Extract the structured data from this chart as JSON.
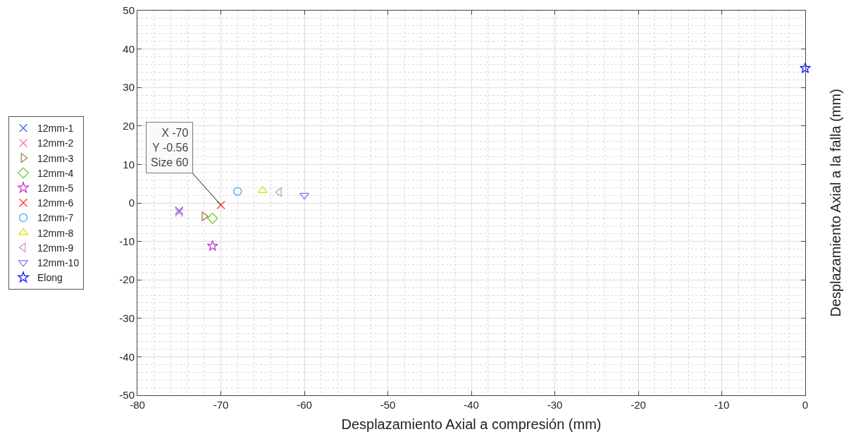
{
  "chart_data": {
    "type": "scatter",
    "xlabel": "Desplazamiento Axial a compresión (mm)",
    "ylabel": "Desplazamiento Axial a la falla (mm)",
    "xlim": [
      -80,
      0
    ],
    "xticks": [
      -80,
      -70,
      -60,
      -50,
      -40,
      -30,
      -20,
      -10,
      0
    ],
    "ylim": [
      -50,
      50
    ],
    "yticks": [
      -50,
      -40,
      -30,
      -20,
      -10,
      0,
      10,
      20,
      30,
      40,
      50
    ],
    "grid": true,
    "legend": "left",
    "series": [
      {
        "name": "12mm-1",
        "color": "#3b6cf0",
        "marker": "x",
        "x": [
          -75
        ],
        "values": [
          -2
        ]
      },
      {
        "name": "12mm-2",
        "color": "#ff66aa",
        "marker": "x",
        "x": [
          -75
        ],
        "values": [
          -2.5
        ]
      },
      {
        "name": "12mm-3",
        "color": "#a67c52",
        "marker": "triangle-right",
        "x": [
          -72
        ],
        "values": [
          -3.5
        ]
      },
      {
        "name": "12mm-4",
        "color": "#66cc33",
        "marker": "diamond",
        "x": [
          -71
        ],
        "values": [
          -4
        ]
      },
      {
        "name": "12mm-5",
        "color": "#cc33cc",
        "marker": "star",
        "x": [
          -71
        ],
        "values": [
          -11.2
        ]
      },
      {
        "name": "12mm-6",
        "color": "#ff3333",
        "marker": "x",
        "x": [
          -70
        ],
        "values": [
          -0.56
        ]
      },
      {
        "name": "12mm-7",
        "color": "#4da6e6",
        "marker": "circle",
        "x": [
          -68
        ],
        "values": [
          3
        ]
      },
      {
        "name": "12mm-8",
        "color": "#dddd00",
        "marker": "triangle-up",
        "x": [
          -65
        ],
        "values": [
          3.2
        ]
      },
      {
        "name": "12mm-9",
        "color": "#cc99cc",
        "marker": "triangle-left",
        "x": [
          -63
        ],
        "values": [
          2.8
        ]
      },
      {
        "name": "12mm-10",
        "color": "#9966ff",
        "marker": "triangle-down",
        "x": [
          -60
        ],
        "values": [
          2
        ]
      },
      {
        "name": "Elong",
        "color": "#1a1aff",
        "marker": "star",
        "x": [
          0
        ],
        "values": [
          35
        ]
      }
    ],
    "annotations": [
      {
        "text": "X -70\nY -0.56\nSize 60",
        "x": -70,
        "y": -0.56
      }
    ]
  }
}
